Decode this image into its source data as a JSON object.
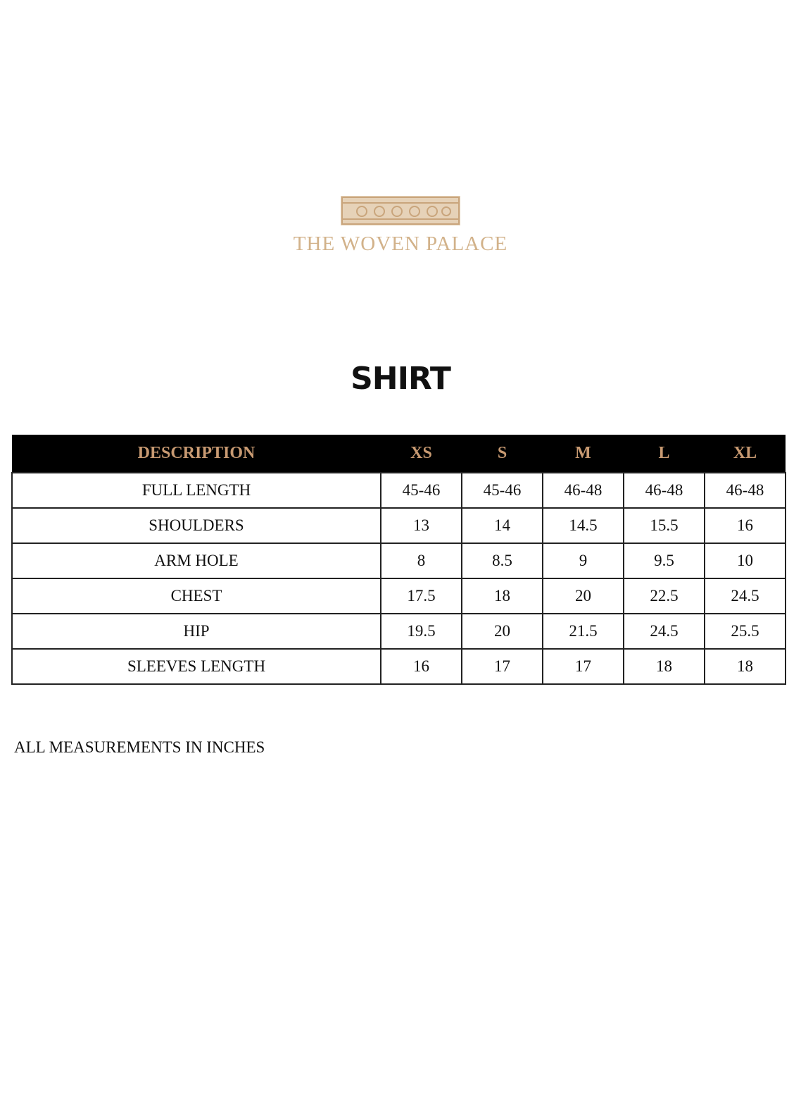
{
  "brand": {
    "name": "THE WOVEN PALACE",
    "color": "#d2b28a",
    "logo_icon": "ornamental-palace-pattern"
  },
  "title": "SHIRT",
  "table": {
    "header_bg": "#000000",
    "header_text_color": "#c89a72",
    "headers": [
      "DESCRIPTION",
      "XS",
      "S",
      "M",
      "L",
      "XL"
    ],
    "rows": [
      [
        "FULL LENGTH",
        "45-46",
        "45-46",
        "46-48",
        "46-48",
        "46-48"
      ],
      [
        "SHOULDERS",
        "13",
        "14",
        "14.5",
        "15.5",
        "16"
      ],
      [
        "ARM HOLE",
        "8",
        "8.5",
        "9",
        "9.5",
        "10"
      ],
      [
        "CHEST",
        "17.5",
        "18",
        "20",
        "22.5",
        "24.5"
      ],
      [
        "HIP",
        "19.5",
        "20",
        "21.5",
        "24.5",
        "25.5"
      ],
      [
        "SLEEVES LENGTH",
        "16",
        "17",
        "17",
        "18",
        "18"
      ]
    ]
  },
  "note": "ALL MEASUREMENTS IN INCHES"
}
